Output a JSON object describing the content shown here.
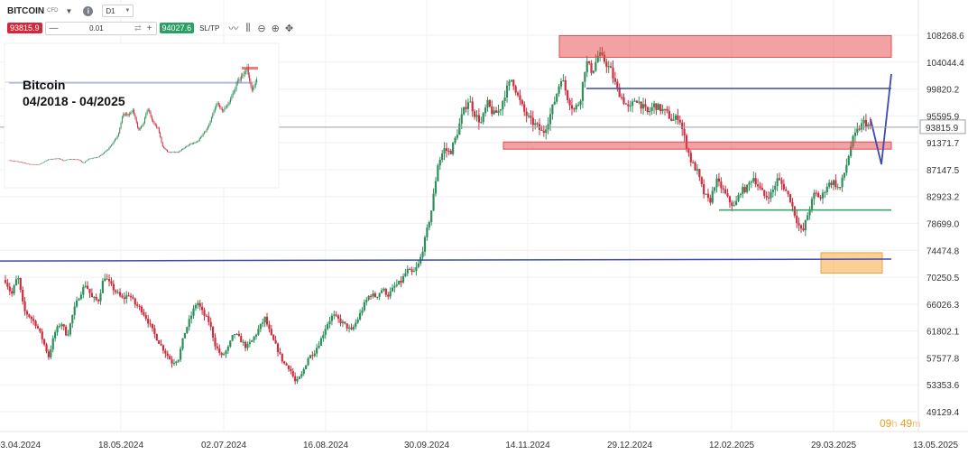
{
  "toolbar": {
    "symbol": "BITCOIN",
    "symbol_type": "CFD",
    "timeframe": "D1",
    "sell_price": "93815.9",
    "quantity": "0.01",
    "buy_price": "94027.6",
    "sltp_label": "SL/TP",
    "icons": [
      "chevron-down-icon",
      "info-icon",
      "minus-icon",
      "plus-icon",
      "swap-icon",
      "line-chart-icon",
      "indicators-icon",
      "zoom-out-icon",
      "zoom-in-icon",
      "crosshair-icon"
    ]
  },
  "inset": {
    "title_line1": "Bitcoin",
    "title_line2": "04/2018 - 04/2025"
  },
  "timer": {
    "hours": "09",
    "h_unit": "h",
    "minutes": "49",
    "m_unit": "m"
  },
  "chart_data": {
    "type": "candlestick",
    "current_price": 93815.9,
    "current_price_label": "93815.9",
    "y_ticks": [
      "108268.6",
      "104044.4",
      "99820.2",
      "95595.9",
      "91371.7",
      "87147.5",
      "82923.2",
      "78699.0",
      "74474.8",
      "70250.5",
      "66026.3",
      "61802.1",
      "57577.8",
      "53353.6",
      "49129.4"
    ],
    "y_values": [
      108268.6,
      104044.4,
      99820.2,
      95595.9,
      91371.7,
      87147.5,
      82923.2,
      78699.0,
      74474.8,
      70250.5,
      66026.3,
      61802.1,
      57577.8,
      53353.6,
      49129.4
    ],
    "x_ticks": [
      "03.04.2024",
      "18.05.2024",
      "02.07.2024",
      "16.08.2024",
      "30.09.2024",
      "14.11.2024",
      "29.12.2024",
      "12.02.2025",
      "29.03.2025",
      "13.05.2025"
    ],
    "price_path": [
      [
        0,
        69800
      ],
      [
        4,
        67500
      ],
      [
        8,
        70500
      ],
      [
        12,
        65000
      ],
      [
        16,
        64000
      ],
      [
        20,
        62800
      ],
      [
        24,
        60500
      ],
      [
        28,
        57800
      ],
      [
        32,
        61500
      ],
      [
        36,
        63200
      ],
      [
        40,
        61000
      ],
      [
        44,
        64800
      ],
      [
        48,
        67500
      ],
      [
        52,
        69200
      ],
      [
        56,
        67000
      ],
      [
        60,
        66500
      ],
      [
        64,
        70500
      ],
      [
        68,
        69000
      ],
      [
        72,
        67800
      ],
      [
        76,
        66800
      ],
      [
        80,
        67600
      ],
      [
        84,
        66000
      ],
      [
        88,
        65200
      ],
      [
        92,
        63500
      ],
      [
        96,
        61500
      ],
      [
        100,
        59800
      ],
      [
        104,
        58300
      ],
      [
        108,
        56800
      ],
      [
        112,
        57500
      ],
      [
        116,
        61500
      ],
      [
        120,
        64000
      ],
      [
        124,
        66500
      ],
      [
        128,
        64500
      ],
      [
        132,
        63200
      ],
      [
        136,
        59500
      ],
      [
        140,
        57800
      ],
      [
        144,
        59000
      ],
      [
        148,
        61500
      ],
      [
        152,
        60500
      ],
      [
        156,
        59200
      ],
      [
        160,
        60400
      ],
      [
        164,
        62100
      ],
      [
        168,
        63800
      ],
      [
        172,
        61000
      ],
      [
        176,
        59000
      ],
      [
        180,
        56800
      ],
      [
        184,
        56000
      ],
      [
        188,
        53600
      ],
      [
        192,
        55000
      ],
      [
        196,
        57600
      ],
      [
        200,
        58500
      ],
      [
        204,
        60300
      ],
      [
        208,
        62800
      ],
      [
        212,
        64300
      ],
      [
        216,
        63500
      ],
      [
        220,
        62700
      ],
      [
        224,
        61800
      ],
      [
        228,
        63600
      ],
      [
        232,
        65800
      ],
      [
        236,
        67600
      ],
      [
        240,
        67200
      ],
      [
        244,
        68400
      ],
      [
        248,
        67400
      ],
      [
        252,
        68800
      ],
      [
        256,
        69500
      ],
      [
        260,
        71300
      ],
      [
        264,
        70800
      ],
      [
        268,
        72500
      ],
      [
        272,
        76500
      ],
      [
        276,
        81000
      ],
      [
        280,
        88000
      ],
      [
        284,
        90400
      ],
      [
        288,
        89800
      ],
      [
        292,
        92500
      ],
      [
        296,
        96000
      ],
      [
        300,
        98200
      ],
      [
        304,
        95800
      ],
      [
        308,
        94500
      ],
      [
        312,
        97600
      ],
      [
        316,
        95800
      ],
      [
        320,
        96500
      ],
      [
        324,
        99500
      ],
      [
        328,
        101500
      ],
      [
        332,
        98500
      ],
      [
        336,
        96200
      ],
      [
        340,
        94800
      ],
      [
        344,
        94000
      ],
      [
        348,
        92800
      ],
      [
        352,
        95200
      ],
      [
        356,
        98300
      ],
      [
        360,
        101800
      ],
      [
        364,
        98500
      ],
      [
        368,
        96500
      ],
      [
        372,
        97900
      ],
      [
        376,
        104200
      ],
      [
        380,
        102500
      ],
      [
        384,
        105300
      ],
      [
        388,
        104200
      ],
      [
        392,
        102700
      ],
      [
        396,
        99800
      ],
      [
        400,
        98100
      ],
      [
        404,
        96500
      ],
      [
        408,
        98400
      ],
      [
        412,
        97200
      ],
      [
        416,
        96000
      ],
      [
        420,
        97300
      ],
      [
        424,
        96700
      ],
      [
        428,
        96100
      ],
      [
        432,
        94800
      ],
      [
        436,
        95600
      ],
      [
        440,
        91800
      ],
      [
        444,
        88400
      ],
      [
        448,
        86800
      ],
      [
        452,
        83500
      ],
      [
        456,
        82000
      ],
      [
        460,
        85500
      ],
      [
        464,
        84200
      ],
      [
        468,
        82400
      ],
      [
        472,
        81300
      ],
      [
        476,
        83800
      ],
      [
        480,
        84200
      ],
      [
        484,
        86100
      ],
      [
        488,
        84300
      ],
      [
        492,
        82800
      ],
      [
        496,
        83400
      ],
      [
        500,
        85700
      ],
      [
        504,
        84400
      ],
      [
        508,
        82600
      ],
      [
        512,
        79400
      ],
      [
        516,
        77100
      ],
      [
        520,
        80600
      ],
      [
        524,
        83500
      ],
      [
        528,
        82600
      ],
      [
        532,
        84700
      ],
      [
        536,
        85300
      ],
      [
        540,
        84000
      ],
      [
        544,
        87300
      ],
      [
        548,
        91500
      ],
      [
        552,
        93400
      ],
      [
        556,
        94700
      ],
      [
        560,
        93815.9
      ]
    ],
    "annotations": {
      "resistance_zone_top": [
        104800,
        108200
      ],
      "resistance_zone_mid": [
        90500,
        91500
      ],
      "support_zone": [
        70900,
        74100
      ],
      "support_line": 80800,
      "horizontal_resistance": 99900,
      "trendline_long_start": 72800,
      "trendline_long_end": 73100
    },
    "title": "",
    "xlabel": "",
    "ylabel": "",
    "grid": true,
    "inset_chart": {
      "type": "candlestick",
      "period": "04/2018 - 04/2025",
      "price_path": [
        [
          0,
          8000
        ],
        [
          10,
          6500
        ],
        [
          20,
          4000
        ],
        [
          30,
          3600
        ],
        [
          40,
          9000
        ],
        [
          50,
          10000
        ],
        [
          55,
          7500
        ],
        [
          60,
          9200
        ],
        [
          70,
          8800
        ],
        [
          75,
          5000
        ],
        [
          80,
          9500
        ],
        [
          90,
          11500
        ],
        [
          100,
          20000
        ],
        [
          110,
          35000
        ],
        [
          115,
          58000
        ],
        [
          120,
          55000
        ],
        [
          125,
          62000
        ],
        [
          130,
          40000
        ],
        [
          135,
          46000
        ],
        [
          140,
          64000
        ],
        [
          145,
          48000
        ],
        [
          150,
          42000
        ],
        [
          155,
          22000
        ],
        [
          160,
          17000
        ],
        [
          170,
          16500
        ],
        [
          180,
          24000
        ],
        [
          190,
          28000
        ],
        [
          200,
          42000
        ],
        [
          210,
          69000
        ],
        [
          215,
          61000
        ],
        [
          220,
          65000
        ],
        [
          230,
          90000
        ],
        [
          240,
          105000
        ],
        [
          245,
          82000
        ],
        [
          250,
          94000
        ]
      ]
    }
  }
}
